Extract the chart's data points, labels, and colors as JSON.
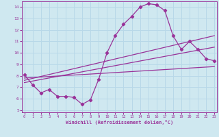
{
  "title": "",
  "xlabel": "Windchill (Refroidissement éolien,°C)",
  "bg_color": "#cfe8f0",
  "grid_color": "#b8d8e8",
  "line_color": "#993399",
  "spine_color": "#993399",
  "x_ticks": [
    0,
    1,
    2,
    3,
    4,
    5,
    6,
    7,
    8,
    9,
    10,
    11,
    12,
    13,
    14,
    15,
    16,
    17,
    18,
    19,
    20,
    21,
    22,
    23
  ],
  "ylim": [
    4.8,
    14.5
  ],
  "xlim": [
    -0.3,
    23.3
  ],
  "yticks": [
    5,
    6,
    7,
    8,
    9,
    10,
    11,
    12,
    13,
    14
  ],
  "line1_x": [
    0,
    1,
    2,
    3,
    4,
    5,
    6,
    7,
    8,
    9,
    10,
    11,
    12,
    13,
    14,
    15,
    16,
    17,
    18,
    19,
    20,
    21,
    22,
    23
  ],
  "line1_y": [
    8.1,
    7.2,
    6.5,
    6.8,
    6.2,
    6.2,
    6.1,
    5.5,
    5.9,
    7.7,
    10.0,
    11.5,
    12.5,
    13.2,
    14.0,
    14.3,
    14.2,
    13.7,
    11.5,
    10.3,
    11.0,
    10.3,
    9.5,
    9.3
  ],
  "line2_x": [
    0,
    23
  ],
  "line2_y": [
    7.8,
    8.8
  ],
  "line3_x": [
    0,
    23
  ],
  "line3_y": [
    7.6,
    11.5
  ],
  "line4_x": [
    0,
    23
  ],
  "line4_y": [
    7.4,
    10.5
  ]
}
